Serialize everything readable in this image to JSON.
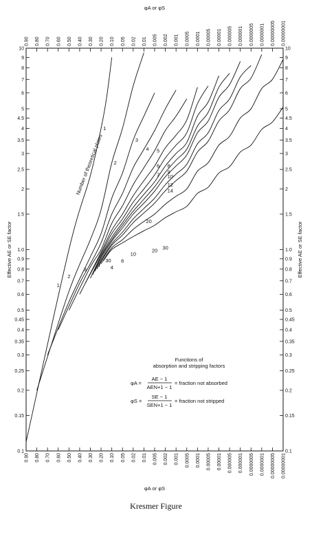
{
  "caption": "Kresmer Figure",
  "chart_data": {
    "type": "line",
    "title": "",
    "x_scale": "nonlinear (1 − φ, log)",
    "y_scale": "log",
    "xlabel_top": "φA or φS",
    "xlabel_bottom": "φA or φS",
    "ylabel_left": "Effective AE or SE factor",
    "ylabel_right": "Effective AE or SE factor",
    "xlim": [
      0.9,
      1e-08
    ],
    "ylim": [
      0.1,
      10
    ],
    "x_ticks": [
      0.9,
      0.8,
      0.7,
      0.6,
      0.5,
      0.4,
      0.3,
      0.2,
      0.1,
      0.05,
      0.02,
      0.01,
      0.005,
      0.002,
      0.001,
      0.0005,
      0.0001,
      5e-05,
      1e-05,
      5e-06,
      1e-06,
      5e-07,
      1e-07,
      5e-08,
      1e-08
    ],
    "x_tick_labels": [
      "0.90",
      "0.80",
      "0.70",
      "0.60",
      "0.50",
      "0.40",
      "0.30",
      "0.20",
      "0.10",
      "0.05",
      "0.02",
      "0.01",
      "0.005",
      "0.002",
      "0.001",
      "0.0005",
      "0.0001",
      "0.00005",
      "0.00001",
      "0.000005",
      "0.000001",
      "0.0000005",
      "0.0000001",
      "0.00000005",
      "0.00000001"
    ],
    "y_ticks": [
      0.1,
      0.15,
      0.2,
      0.25,
      0.3,
      0.35,
      0.4,
      0.45,
      0.5,
      0.6,
      0.7,
      0.8,
      0.9,
      1.0,
      1.5,
      2,
      2.5,
      3,
      3.5,
      4,
      4.5,
      5,
      6,
      7,
      8,
      9,
      10
    ],
    "y_tick_labels": [
      "0.1",
      "0.15",
      "0.2",
      "0.25",
      "0.3",
      "0.35",
      "0.4",
      "0.45",
      "0.5",
      "0.6",
      "0.7",
      "0.8",
      "0.9",
      "1.0",
      "1.5",
      "2",
      "2.5",
      "3",
      "3.5",
      "4",
      "4.5",
      "5",
      "6",
      "7",
      "8",
      "9",
      "10"
    ],
    "annotation_curve_family": "Number of theoretical plates",
    "series": [
      {
        "name": "1",
        "x": [
          0.9,
          0.5,
          0.3,
          0.2,
          0.15,
          0.1
        ],
        "y": [
          0.111,
          1.0,
          2.33,
          4.0,
          5.67,
          9.0
        ]
      },
      {
        "name": "2",
        "x": [
          0.8,
          0.5,
          0.3,
          0.2,
          0.1,
          0.05,
          0.02,
          0.01
        ],
        "y": [
          0.2,
          0.62,
          1.12,
          1.58,
          2.7,
          4.0,
          6.5,
          9.5
        ]
      },
      {
        "name": "3",
        "x": [
          0.7,
          0.5,
          0.3,
          0.2,
          0.1,
          0.05,
          0.02,
          0.01,
          0.005
        ],
        "y": [
          0.3,
          0.55,
          0.92,
          1.2,
          1.8,
          2.4,
          3.5,
          4.6,
          6.0
        ]
      },
      {
        "name": "4",
        "x": [
          0.6,
          0.4,
          0.3,
          0.2,
          0.1,
          0.05,
          0.02,
          0.01,
          0.005,
          0.002,
          0.001
        ],
        "y": [
          0.4,
          0.68,
          0.85,
          1.08,
          1.5,
          1.9,
          2.55,
          3.15,
          3.9,
          5.0,
          6.2
        ]
      },
      {
        "name": "5",
        "x": [
          0.5,
          0.3,
          0.2,
          0.1,
          0.05,
          0.02,
          0.01,
          0.005,
          0.002,
          0.001,
          0.0005
        ],
        "y": [
          0.5,
          0.82,
          1.0,
          1.35,
          1.65,
          2.1,
          2.55,
          3.1,
          3.9,
          4.6,
          5.6
        ]
      },
      {
        "name": "6",
        "x": [
          0.4,
          0.2,
          0.1,
          0.05,
          0.02,
          0.01,
          0.005,
          0.002,
          0.001,
          0.0005,
          0.0001
        ],
        "y": [
          0.6,
          0.97,
          1.25,
          1.5,
          1.85,
          2.2,
          2.6,
          3.2,
          3.7,
          4.4,
          6.4
        ]
      },
      {
        "name": "7",
        "x": [
          0.35,
          0.2,
          0.1,
          0.05,
          0.02,
          0.01,
          0.005,
          0.002,
          0.001,
          0.0005,
          0.0001,
          5e-05
        ],
        "y": [
          0.68,
          0.95,
          1.2,
          1.42,
          1.72,
          2.0,
          2.35,
          2.85,
          3.3,
          3.8,
          5.3,
          6.5
        ]
      },
      {
        "name": "8",
        "x": [
          0.3,
          0.2,
          0.1,
          0.05,
          0.02,
          0.01,
          0.005,
          0.002,
          0.001,
          0.0005,
          0.0001,
          5e-05,
          1e-05
        ],
        "y": [
          0.72,
          0.93,
          1.15,
          1.36,
          1.62,
          1.88,
          2.17,
          2.6,
          3.0,
          3.4,
          4.6,
          5.4,
          7.3
        ]
      },
      {
        "name": "9",
        "x": [
          0.28,
          0.2,
          0.1,
          0.05,
          0.02,
          0.01,
          0.005,
          0.002,
          0.001,
          0.0005,
          0.0001,
          5e-05,
          1e-05,
          5e-06
        ],
        "y": [
          0.75,
          0.92,
          1.12,
          1.32,
          1.55,
          1.78,
          2.05,
          2.42,
          2.78,
          3.15,
          4.1,
          4.8,
          6.4,
          7.5
        ]
      },
      {
        "name": "10",
        "x": [
          0.26,
          0.2,
          0.1,
          0.05,
          0.02,
          0.01,
          0.005,
          0.002,
          0.001,
          0.0005,
          0.0001,
          5e-05,
          1e-05,
          5e-06,
          1e-06
        ],
        "y": [
          0.78,
          0.9,
          1.1,
          1.28,
          1.5,
          1.7,
          1.95,
          2.3,
          2.6,
          2.95,
          3.8,
          4.35,
          5.7,
          6.6,
          8.6
        ]
      },
      {
        "name": "12",
        "x": [
          0.24,
          0.2,
          0.1,
          0.05,
          0.02,
          0.01,
          0.005,
          0.002,
          0.001,
          0.0005,
          0.0001,
          5e-05,
          1e-05,
          5e-06,
          1e-06,
          5e-07
        ],
        "y": [
          0.8,
          0.88,
          1.07,
          1.22,
          1.42,
          1.6,
          1.8,
          2.1,
          2.37,
          2.65,
          3.35,
          3.8,
          4.9,
          5.6,
          7.2,
          8.2
        ]
      },
      {
        "name": "14",
        "x": [
          0.22,
          0.2,
          0.1,
          0.05,
          0.02,
          0.01,
          0.005,
          0.002,
          0.001,
          0.0005,
          0.0001,
          5e-05,
          1e-05,
          5e-06,
          1e-06,
          5e-07,
          1e-07
        ],
        "y": [
          0.82,
          0.87,
          1.05,
          1.18,
          1.36,
          1.52,
          1.7,
          1.96,
          2.2,
          2.45,
          3.05,
          3.45,
          4.35,
          4.95,
          6.3,
          7.1,
          9.3
        ]
      },
      {
        "name": "20",
        "x": [
          0.2,
          0.1,
          0.05,
          0.02,
          0.01,
          0.005,
          0.002,
          0.001,
          0.0005,
          0.0001,
          5e-05,
          1e-05,
          5e-06,
          1e-06,
          5e-07,
          1e-07,
          5e-08,
          1e-08
        ],
        "y": [
          0.85,
          1.02,
          1.12,
          1.26,
          1.38,
          1.5,
          1.68,
          1.84,
          2.0,
          2.45,
          2.7,
          3.3,
          3.65,
          4.5,
          5.0,
          6.3,
          7.0,
          8.8
        ]
      },
      {
        "name": "30",
        "x": [
          0.18,
          0.1,
          0.05,
          0.02,
          0.01,
          0.005,
          0.002,
          0.001,
          0.0005,
          0.0001,
          5e-05,
          1e-05,
          5e-06,
          1e-06,
          5e-07,
          1e-07,
          5e-08,
          1e-08
        ],
        "y": [
          0.88,
          1.0,
          1.08,
          1.16,
          1.24,
          1.32,
          1.44,
          1.54,
          1.64,
          1.9,
          2.04,
          2.4,
          2.58,
          3.05,
          3.3,
          3.95,
          4.3,
          5.1
        ]
      }
    ],
    "lower_labels": [
      {
        "text": "1",
        "x": 0.6,
        "y": 0.65
      },
      {
        "text": "2",
        "x": 0.5,
        "y": 0.72
      },
      {
        "text": "3",
        "x": 0.35,
        "y": 0.78
      },
      {
        "text": "4",
        "x": 0.1,
        "y": 0.8
      },
      {
        "text": "6",
        "x": 0.05,
        "y": 0.86
      },
      {
        "text": "10",
        "x": 0.02,
        "y": 0.93
      },
      {
        "text": "20",
        "x": 0.005,
        "y": 0.97
      },
      {
        "text": "30",
        "x": 0.002,
        "y": 1.0
      }
    ],
    "legend_box": {
      "heading_line1": "Functions of",
      "heading_line2": "absorption and stripping factors",
      "eq_a_lhs": "φA =",
      "eq_a_num": "AE − 1",
      "eq_a_den": "AEN+1 − 1",
      "eq_a_rhs": "= fraction not absorbed",
      "eq_s_lhs": "φS =",
      "eq_s_num": "SE − 1",
      "eq_s_den": "SEN+1 − 1",
      "eq_s_rhs": "= fraction not stripped"
    }
  }
}
